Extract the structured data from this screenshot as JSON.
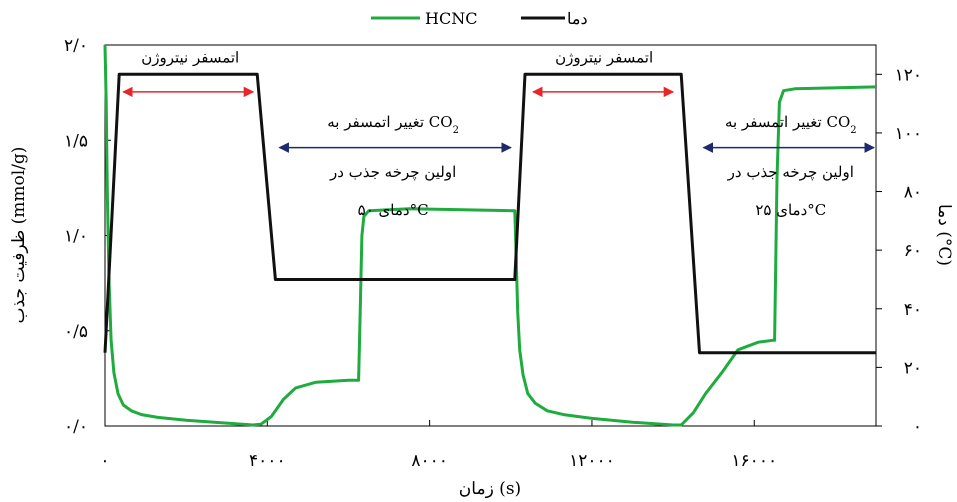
{
  "chart_data": {
    "type": "line",
    "xlabel": "زمان (s)",
    "ylabel_left": "ظرفیت جذب (mmol/g)",
    "ylabel_right": "دما (°C)",
    "xlim": [
      0,
      19000
    ],
    "ylim_left": [
      0,
      2
    ],
    "ylim_right": [
      0,
      130
    ],
    "x_ticks": [
      {
        "value": 0,
        "label": "۰"
      },
      {
        "value": 4000,
        "label": "۴۰۰۰"
      },
      {
        "value": 8000,
        "label": "۸۰۰۰"
      },
      {
        "value": 12000,
        "label": "۱۲۰۰۰"
      },
      {
        "value": 16000,
        "label": "۱۶۰۰۰"
      }
    ],
    "y_left_ticks": [
      {
        "value": 0,
        "label": "۰/۰"
      },
      {
        "value": 0.5,
        "label": "۰/۵"
      },
      {
        "value": 1.0,
        "label": "۱/۰"
      },
      {
        "value": 1.5,
        "label": "۱/۵"
      },
      {
        "value": 2.0,
        "label": "۲/۰"
      }
    ],
    "y_right_ticks": [
      {
        "value": 0,
        "label": "۰"
      },
      {
        "value": 20,
        "label": "۲۰"
      },
      {
        "value": 40,
        "label": "۴۰"
      },
      {
        "value": 60,
        "label": "۶۰"
      },
      {
        "value": 80,
        "label": "۸۰"
      },
      {
        "value": 100,
        "label": "۱۰۰"
      },
      {
        "value": 120,
        "label": "۱۲۰"
      }
    ],
    "legend": {
      "placement": "top-center"
    },
    "series": [
      {
        "name": "HCNC",
        "axis": "left",
        "color": "#1fab3e",
        "points": [
          [
            0,
            2.0
          ],
          [
            30,
            1.7
          ],
          [
            60,
            1.2
          ],
          [
            100,
            0.75
          ],
          [
            150,
            0.45
          ],
          [
            220,
            0.28
          ],
          [
            320,
            0.17
          ],
          [
            450,
            0.11
          ],
          [
            650,
            0.08
          ],
          [
            900,
            0.06
          ],
          [
            1300,
            0.045
          ],
          [
            2000,
            0.03
          ],
          [
            3000,
            0.015
          ],
          [
            3650,
            0.005
          ],
          [
            3850,
            0.01
          ],
          [
            4100,
            0.05
          ],
          [
            4400,
            0.14
          ],
          [
            4700,
            0.2
          ],
          [
            5200,
            0.23
          ],
          [
            6000,
            0.24
          ],
          [
            6250,
            0.24
          ],
          [
            6290,
            0.6
          ],
          [
            6330,
            1.0
          ],
          [
            6380,
            1.1
          ],
          [
            6500,
            1.13
          ],
          [
            7500,
            1.14
          ],
          [
            10050,
            1.13
          ],
          [
            10100,
            1.13
          ],
          [
            10130,
            0.9
          ],
          [
            10170,
            0.6
          ],
          [
            10220,
            0.4
          ],
          [
            10300,
            0.27
          ],
          [
            10420,
            0.17
          ],
          [
            10600,
            0.12
          ],
          [
            10900,
            0.08
          ],
          [
            11300,
            0.06
          ],
          [
            12000,
            0.04
          ],
          [
            13000,
            0.02
          ],
          [
            14000,
            0.005
          ],
          [
            14200,
            0.005
          ],
          [
            14500,
            0.07
          ],
          [
            14800,
            0.17
          ],
          [
            15200,
            0.28
          ],
          [
            15600,
            0.4
          ],
          [
            16100,
            0.44
          ],
          [
            16450,
            0.45
          ],
          [
            16500,
            0.45
          ],
          [
            16560,
            1.3
          ],
          [
            16620,
            1.7
          ],
          [
            16720,
            1.76
          ],
          [
            17000,
            1.77
          ],
          [
            19000,
            1.78
          ]
        ]
      },
      {
        "name": "دما",
        "axis": "right",
        "color": "#111111",
        "points": [
          [
            0,
            25
          ],
          [
            350,
            120
          ],
          [
            3750,
            120
          ],
          [
            4200,
            50
          ],
          [
            10100,
            50
          ],
          [
            10350,
            120
          ],
          [
            14200,
            120
          ],
          [
            14650,
            25
          ],
          [
            19000,
            25
          ]
        ]
      }
    ],
    "annotations": [
      {
        "text": "اتمسفر نیتروژن",
        "x": 2100,
        "y_right": 124
      },
      {
        "text": "اتمسفر نیتروژن",
        "x": 12300,
        "y_right": 124
      },
      {
        "text": "تغییر اتمسفر به CO",
        "sub": "2",
        "x": 7100,
        "y_right": 102
      },
      {
        "text": "اولین چرخه جذب در",
        "x": 7100,
        "y_right": 85
      },
      {
        "text": "دمای ۵۰°C",
        "x": 7100,
        "y_right": 72
      },
      {
        "text": "تغییر اتمسفر به CO",
        "sub": "2",
        "x": 16900,
        "y_right": 102
      },
      {
        "text": "اولین چرخه جذب در",
        "x": 16900,
        "y_right": 85
      },
      {
        "text": "دمای ۲۵°C",
        "x": 16900,
        "y_right": 72
      }
    ],
    "arrows": [
      {
        "color": "#e8262a",
        "x1": 450,
        "x2": 3650,
        "y_right": 114
      },
      {
        "color": "#e8262a",
        "x1": 10550,
        "x2": 14000,
        "y_right": 114
      },
      {
        "color": "#1d2a6b",
        "x1": 4300,
        "x2": 10000,
        "y_right": 95
      },
      {
        "color": "#1d2a6b",
        "x1": 14750,
        "x2": 18950,
        "y_right": 95
      }
    ]
  }
}
